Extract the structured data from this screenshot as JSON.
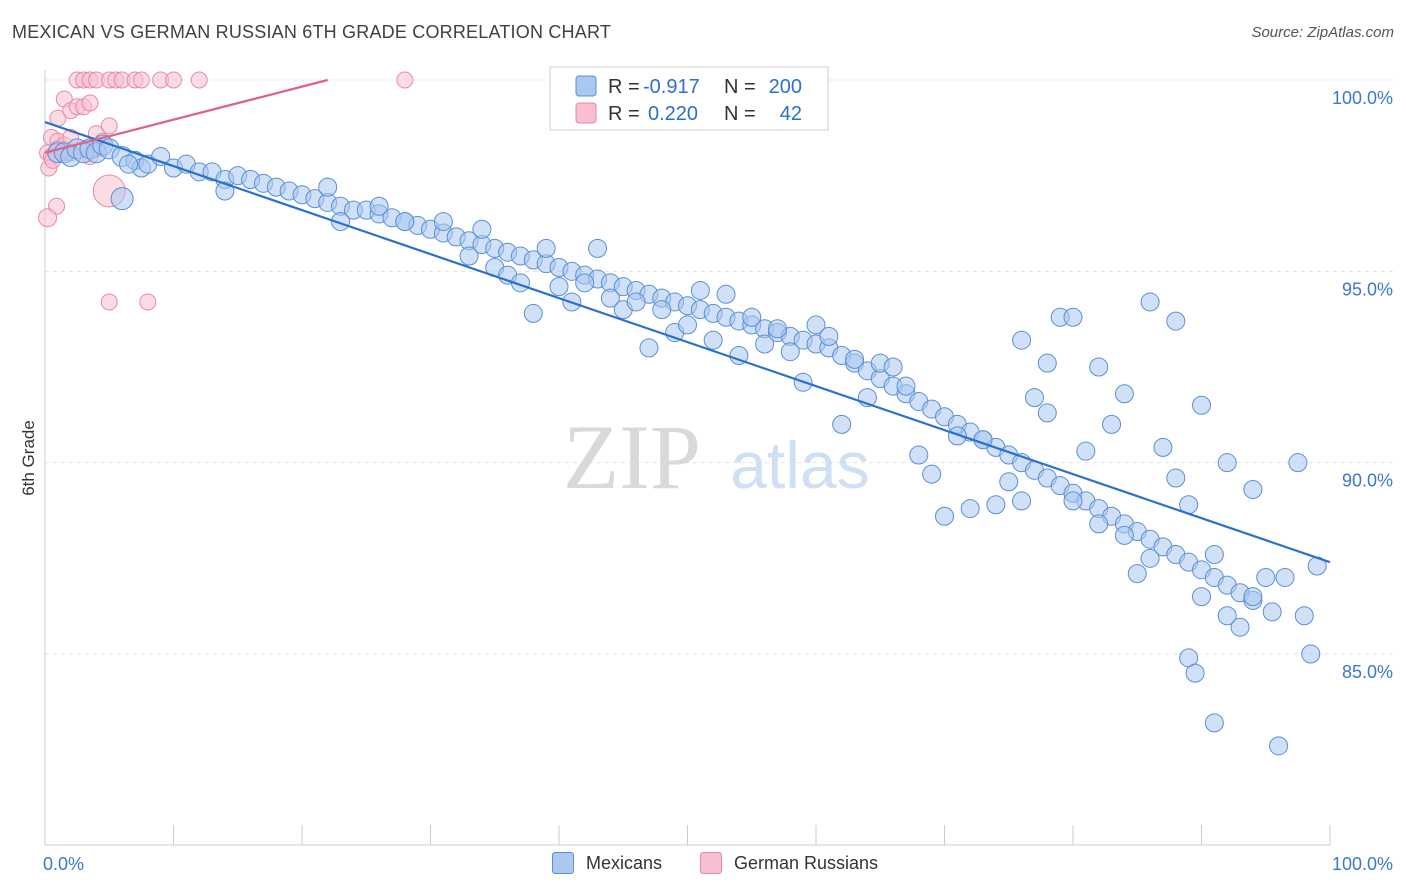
{
  "title": "MEXICAN VS GERMAN RUSSIAN 6TH GRADE CORRELATION CHART",
  "source": "Source: ZipAtlas.com",
  "watermark": {
    "zip": "ZIP",
    "atlas": "atlas"
  },
  "colors": {
    "blue_fill": "#a9c9f1",
    "blue_stroke": "#5b8fd6",
    "blue_line": "#2a6fd2",
    "pink_fill": "#f7bfd0",
    "pink_stroke": "#e98aa8",
    "pink_line": "#e0608a",
    "tick_label": "#3b78d0",
    "grid": "#e3e3e3"
  },
  "legend": {
    "rows": [
      {
        "r_label": "R =",
        "r_value": "-0.917",
        "n_label": "N =",
        "n_value": "200"
      },
      {
        "r_label": "R =",
        "r_value": "0.220",
        "n_label": "N =",
        "n_value": "42"
      }
    ]
  },
  "bottom_legend": [
    {
      "label": "Mexicans",
      "color": "#a9c9f1"
    },
    {
      "label": "German Russians",
      "color": "#f7bfd0"
    }
  ],
  "chart_data": {
    "type": "scatter",
    "xlabel": "",
    "ylabel": "6th Grade",
    "xlim": [
      0,
      100
    ],
    "ylim": [
      80,
      100.5
    ],
    "x_tick_labels": [
      {
        "value": 0,
        "label": "0.0%"
      },
      {
        "value": 100,
        "label": "100.0%"
      }
    ],
    "y_tick_labels": [
      {
        "value": 100,
        "label": "100.0%"
      },
      {
        "value": 95,
        "label": "95.0%"
      },
      {
        "value": 90,
        "label": "90.0%"
      },
      {
        "value": 85,
        "label": "85.0%"
      }
    ],
    "series": [
      {
        "name": "Mexicans",
        "R": -0.917,
        "N": 200,
        "trendline": [
          [
            0,
            98.9
          ],
          [
            100,
            87.4
          ]
        ],
        "points": [
          [
            1.0,
            98.1
          ],
          [
            1.5,
            98.1
          ],
          [
            2,
            98.0
          ],
          [
            2.5,
            98.2
          ],
          [
            3,
            98.1
          ],
          [
            3.5,
            98.2
          ],
          [
            4,
            98.1
          ],
          [
            4.5,
            98.3
          ],
          [
            5,
            98.2
          ],
          [
            6,
            98.0
          ],
          [
            7,
            97.9
          ],
          [
            7.5,
            97.7
          ],
          [
            6.5,
            97.8
          ],
          [
            8,
            97.8
          ],
          [
            9,
            98.0
          ],
          [
            10,
            97.7
          ],
          [
            11,
            97.8
          ],
          [
            12,
            97.6
          ],
          [
            13,
            97.6
          ],
          [
            14,
            97.4
          ],
          [
            15,
            97.5
          ],
          [
            16,
            97.4
          ],
          [
            17,
            97.3
          ],
          [
            18,
            97.2
          ],
          [
            19,
            97.1
          ],
          [
            20,
            97.0
          ],
          [
            21,
            96.9
          ],
          [
            22,
            96.8
          ],
          [
            23,
            96.7
          ],
          [
            24,
            96.6
          ],
          [
            25,
            96.6
          ],
          [
            26,
            96.5
          ],
          [
            27,
            96.4
          ],
          [
            28,
            96.3
          ],
          [
            29,
            96.2
          ],
          [
            30,
            96.1
          ],
          [
            31,
            96.0
          ],
          [
            32,
            95.9
          ],
          [
            33,
            95.8
          ],
          [
            34,
            95.7
          ],
          [
            35,
            95.6
          ],
          [
            36,
            95.5
          ],
          [
            37,
            95.4
          ],
          [
            38,
            95.3
          ],
          [
            39,
            95.2
          ],
          [
            40,
            95.1
          ],
          [
            41,
            95.0
          ],
          [
            42,
            94.9
          ],
          [
            43,
            94.8
          ],
          [
            44,
            94.7
          ],
          [
            45,
            94.6
          ],
          [
            46,
            94.5
          ],
          [
            47,
            94.4
          ],
          [
            48,
            94.3
          ],
          [
            49,
            94.2
          ],
          [
            50,
            94.1
          ],
          [
            51,
            94.0
          ],
          [
            52,
            93.9
          ],
          [
            53,
            93.8
          ],
          [
            54,
            93.7
          ],
          [
            55,
            93.6
          ],
          [
            56,
            93.5
          ],
          [
            57,
            93.4
          ],
          [
            58,
            93.3
          ],
          [
            59,
            93.2
          ],
          [
            60,
            93.1
          ],
          [
            61,
            93.0
          ],
          [
            62,
            92.8
          ],
          [
            63,
            92.6
          ],
          [
            64,
            92.4
          ],
          [
            65,
            92.2
          ],
          [
            66,
            92.0
          ],
          [
            67,
            91.8
          ],
          [
            68,
            91.6
          ],
          [
            69,
            91.4
          ],
          [
            70,
            91.2
          ],
          [
            71,
            91.0
          ],
          [
            72,
            90.8
          ],
          [
            73,
            90.6
          ],
          [
            74,
            90.4
          ],
          [
            75,
            90.2
          ],
          [
            76,
            90.0
          ],
          [
            77,
            89.8
          ],
          [
            78,
            89.6
          ],
          [
            79,
            89.4
          ],
          [
            80,
            89.2
          ],
          [
            81,
            89.0
          ],
          [
            82,
            88.8
          ],
          [
            83,
            88.6
          ],
          [
            84,
            88.4
          ],
          [
            85,
            88.2
          ],
          [
            86,
            88.0
          ],
          [
            87,
            87.8
          ],
          [
            88,
            87.6
          ],
          [
            89,
            87.4
          ],
          [
            90,
            87.2
          ],
          [
            91,
            87.0
          ],
          [
            92,
            86.8
          ],
          [
            93,
            86.6
          ],
          [
            94,
            86.4
          ],
          [
            6,
            96.9
          ],
          [
            14,
            97.1
          ],
          [
            22,
            97.2
          ],
          [
            23,
            96.3
          ],
          [
            26,
            96.7
          ],
          [
            28,
            96.3
          ],
          [
            31,
            96.3
          ],
          [
            33,
            95.4
          ],
          [
            34,
            96.1
          ],
          [
            35,
            95.1
          ],
          [
            36,
            94.9
          ],
          [
            37,
            94.7
          ],
          [
            38,
            93.9
          ],
          [
            39,
            95.6
          ],
          [
            40,
            94.6
          ],
          [
            41,
            94.2
          ],
          [
            42,
            94.7
          ],
          [
            43,
            95.6
          ],
          [
            44,
            94.3
          ],
          [
            45,
            94.0
          ],
          [
            46,
            94.2
          ],
          [
            47,
            93.0
          ],
          [
            48,
            94.0
          ],
          [
            49,
            93.4
          ],
          [
            50,
            93.6
          ],
          [
            51,
            94.5
          ],
          [
            52,
            93.2
          ],
          [
            53,
            94.4
          ],
          [
            54,
            92.8
          ],
          [
            55,
            93.8
          ],
          [
            56,
            93.1
          ],
          [
            57,
            93.5
          ],
          [
            58,
            92.9
          ],
          [
            59,
            92.1
          ],
          [
            60,
            93.6
          ],
          [
            61,
            93.3
          ],
          [
            62,
            91.0
          ],
          [
            63,
            92.7
          ],
          [
            64,
            91.7
          ],
          [
            65,
            92.6
          ],
          [
            66,
            92.5
          ],
          [
            67,
            92.0
          ],
          [
            68,
            90.2
          ],
          [
            69,
            89.7
          ],
          [
            70,
            88.6
          ],
          [
            71,
            90.7
          ],
          [
            72,
            88.8
          ],
          [
            73,
            90.6
          ],
          [
            74,
            88.9
          ],
          [
            75,
            89.5
          ],
          [
            76,
            89.0
          ],
          [
            77,
            91.7
          ],
          [
            78,
            91.3
          ],
          [
            79,
            93.8
          ],
          [
            80,
            89.0
          ],
          [
            81,
            90.3
          ],
          [
            82,
            88.4
          ],
          [
            83,
            91.0
          ],
          [
            84,
            88.1
          ],
          [
            85,
            87.1
          ],
          [
            86,
            87.5
          ],
          [
            87,
            90.4
          ],
          [
            88,
            89.6
          ],
          [
            89,
            88.9
          ],
          [
            90,
            86.5
          ],
          [
            91,
            87.6
          ],
          [
            92,
            86.0
          ],
          [
            93,
            85.7
          ],
          [
            94,
            86.5
          ],
          [
            95,
            87.0
          ],
          [
            76,
            93.2
          ],
          [
            78,
            92.6
          ],
          [
            80,
            93.8
          ],
          [
            82,
            92.5
          ],
          [
            84,
            91.8
          ],
          [
            86,
            94.2
          ],
          [
            88,
            93.7
          ],
          [
            90,
            91.5
          ],
          [
            92,
            90.0
          ],
          [
            94,
            89.3
          ],
          [
            89,
            84.9
          ],
          [
            89.5,
            84.5
          ],
          [
            91,
            83.2
          ],
          [
            96,
            82.6
          ],
          [
            98,
            86.0
          ],
          [
            98.5,
            85.0
          ],
          [
            96.5,
            87.0
          ],
          [
            97.5,
            90.0
          ],
          [
            99,
            87.3
          ],
          [
            95.5,
            86.1
          ]
        ]
      },
      {
        "name": "German Russians",
        "R": 0.22,
        "N": 42,
        "trendline": [
          [
            0,
            98.1
          ],
          [
            22,
            100.0
          ]
        ],
        "points": [
          [
            2.5,
            100
          ],
          [
            3,
            100
          ],
          [
            3.5,
            100
          ],
          [
            4,
            100
          ],
          [
            5,
            100
          ],
          [
            5.5,
            100
          ],
          [
            6,
            100
          ],
          [
            7,
            100
          ],
          [
            7.5,
            100
          ],
          [
            9,
            100
          ],
          [
            10,
            100
          ],
          [
            12,
            100
          ],
          [
            28,
            100
          ],
          [
            1,
            99.0
          ],
          [
            1.5,
            99.5
          ],
          [
            2,
            99.2
          ],
          [
            2.5,
            99.3
          ],
          [
            3,
            99.3
          ],
          [
            3.5,
            99.4
          ],
          [
            0.5,
            98.5
          ],
          [
            1,
            98.4
          ],
          [
            1.5,
            98.3
          ],
          [
            2,
            98.5
          ],
          [
            4,
            98.6
          ],
          [
            4.5,
            98.4
          ],
          [
            5,
            98.8
          ],
          [
            0.2,
            98.1
          ],
          [
            0.5,
            98.0
          ],
          [
            1,
            98.2
          ],
          [
            1.5,
            98.1
          ],
          [
            2,
            98.1
          ],
          [
            3,
            98.2
          ],
          [
            3.5,
            98.0
          ],
          [
            0.3,
            97.7
          ],
          [
            0.6,
            97.9
          ],
          [
            0.9,
            96.7
          ],
          [
            0.2,
            96.4
          ],
          [
            5,
            97.1
          ],
          [
            5,
            94.2
          ],
          [
            8,
            94.2
          ],
          [
            4,
            98.2
          ]
        ]
      }
    ]
  }
}
